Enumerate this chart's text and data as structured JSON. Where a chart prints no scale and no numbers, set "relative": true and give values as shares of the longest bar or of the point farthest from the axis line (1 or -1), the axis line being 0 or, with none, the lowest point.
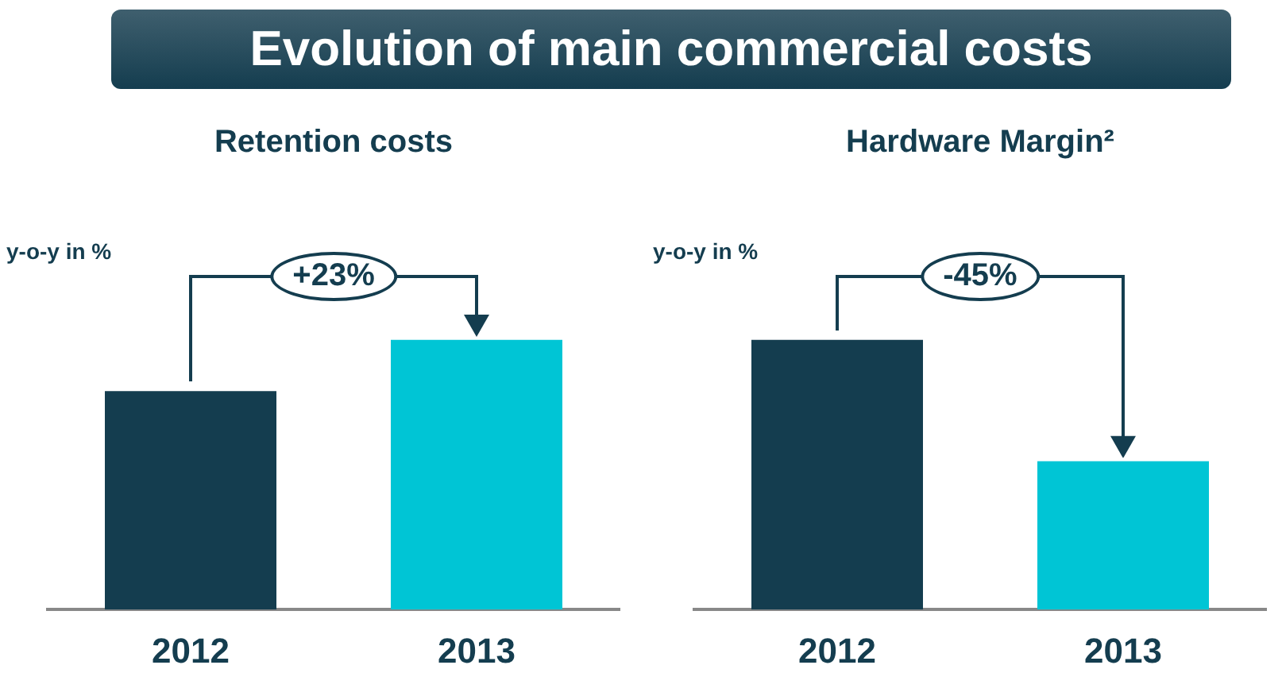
{
  "chart_data": [
    {
      "type": "other",
      "title": "Evolution of main commercial costs"
    },
    {
      "type": "bar",
      "title": "Retention costs",
      "ylabel": "y-o-y in %",
      "categories": [
        "2012",
        "2013"
      ],
      "values": [
        0.81,
        1
      ],
      "colors": [
        "#143d4f",
        "#00c5d5"
      ],
      "relative": true,
      "annotations": [
        "+23%"
      ]
    },
    {
      "type": "bar",
      "title": "Hardware Margin²",
      "ylabel": "y-o-y in %",
      "categories": [
        "2012",
        "2013"
      ],
      "values": [
        1,
        0.55
      ],
      "colors": [
        "#143d4f",
        "#00c5d5"
      ],
      "relative": true,
      "annotations": [
        "-45%"
      ]
    }
  ]
}
